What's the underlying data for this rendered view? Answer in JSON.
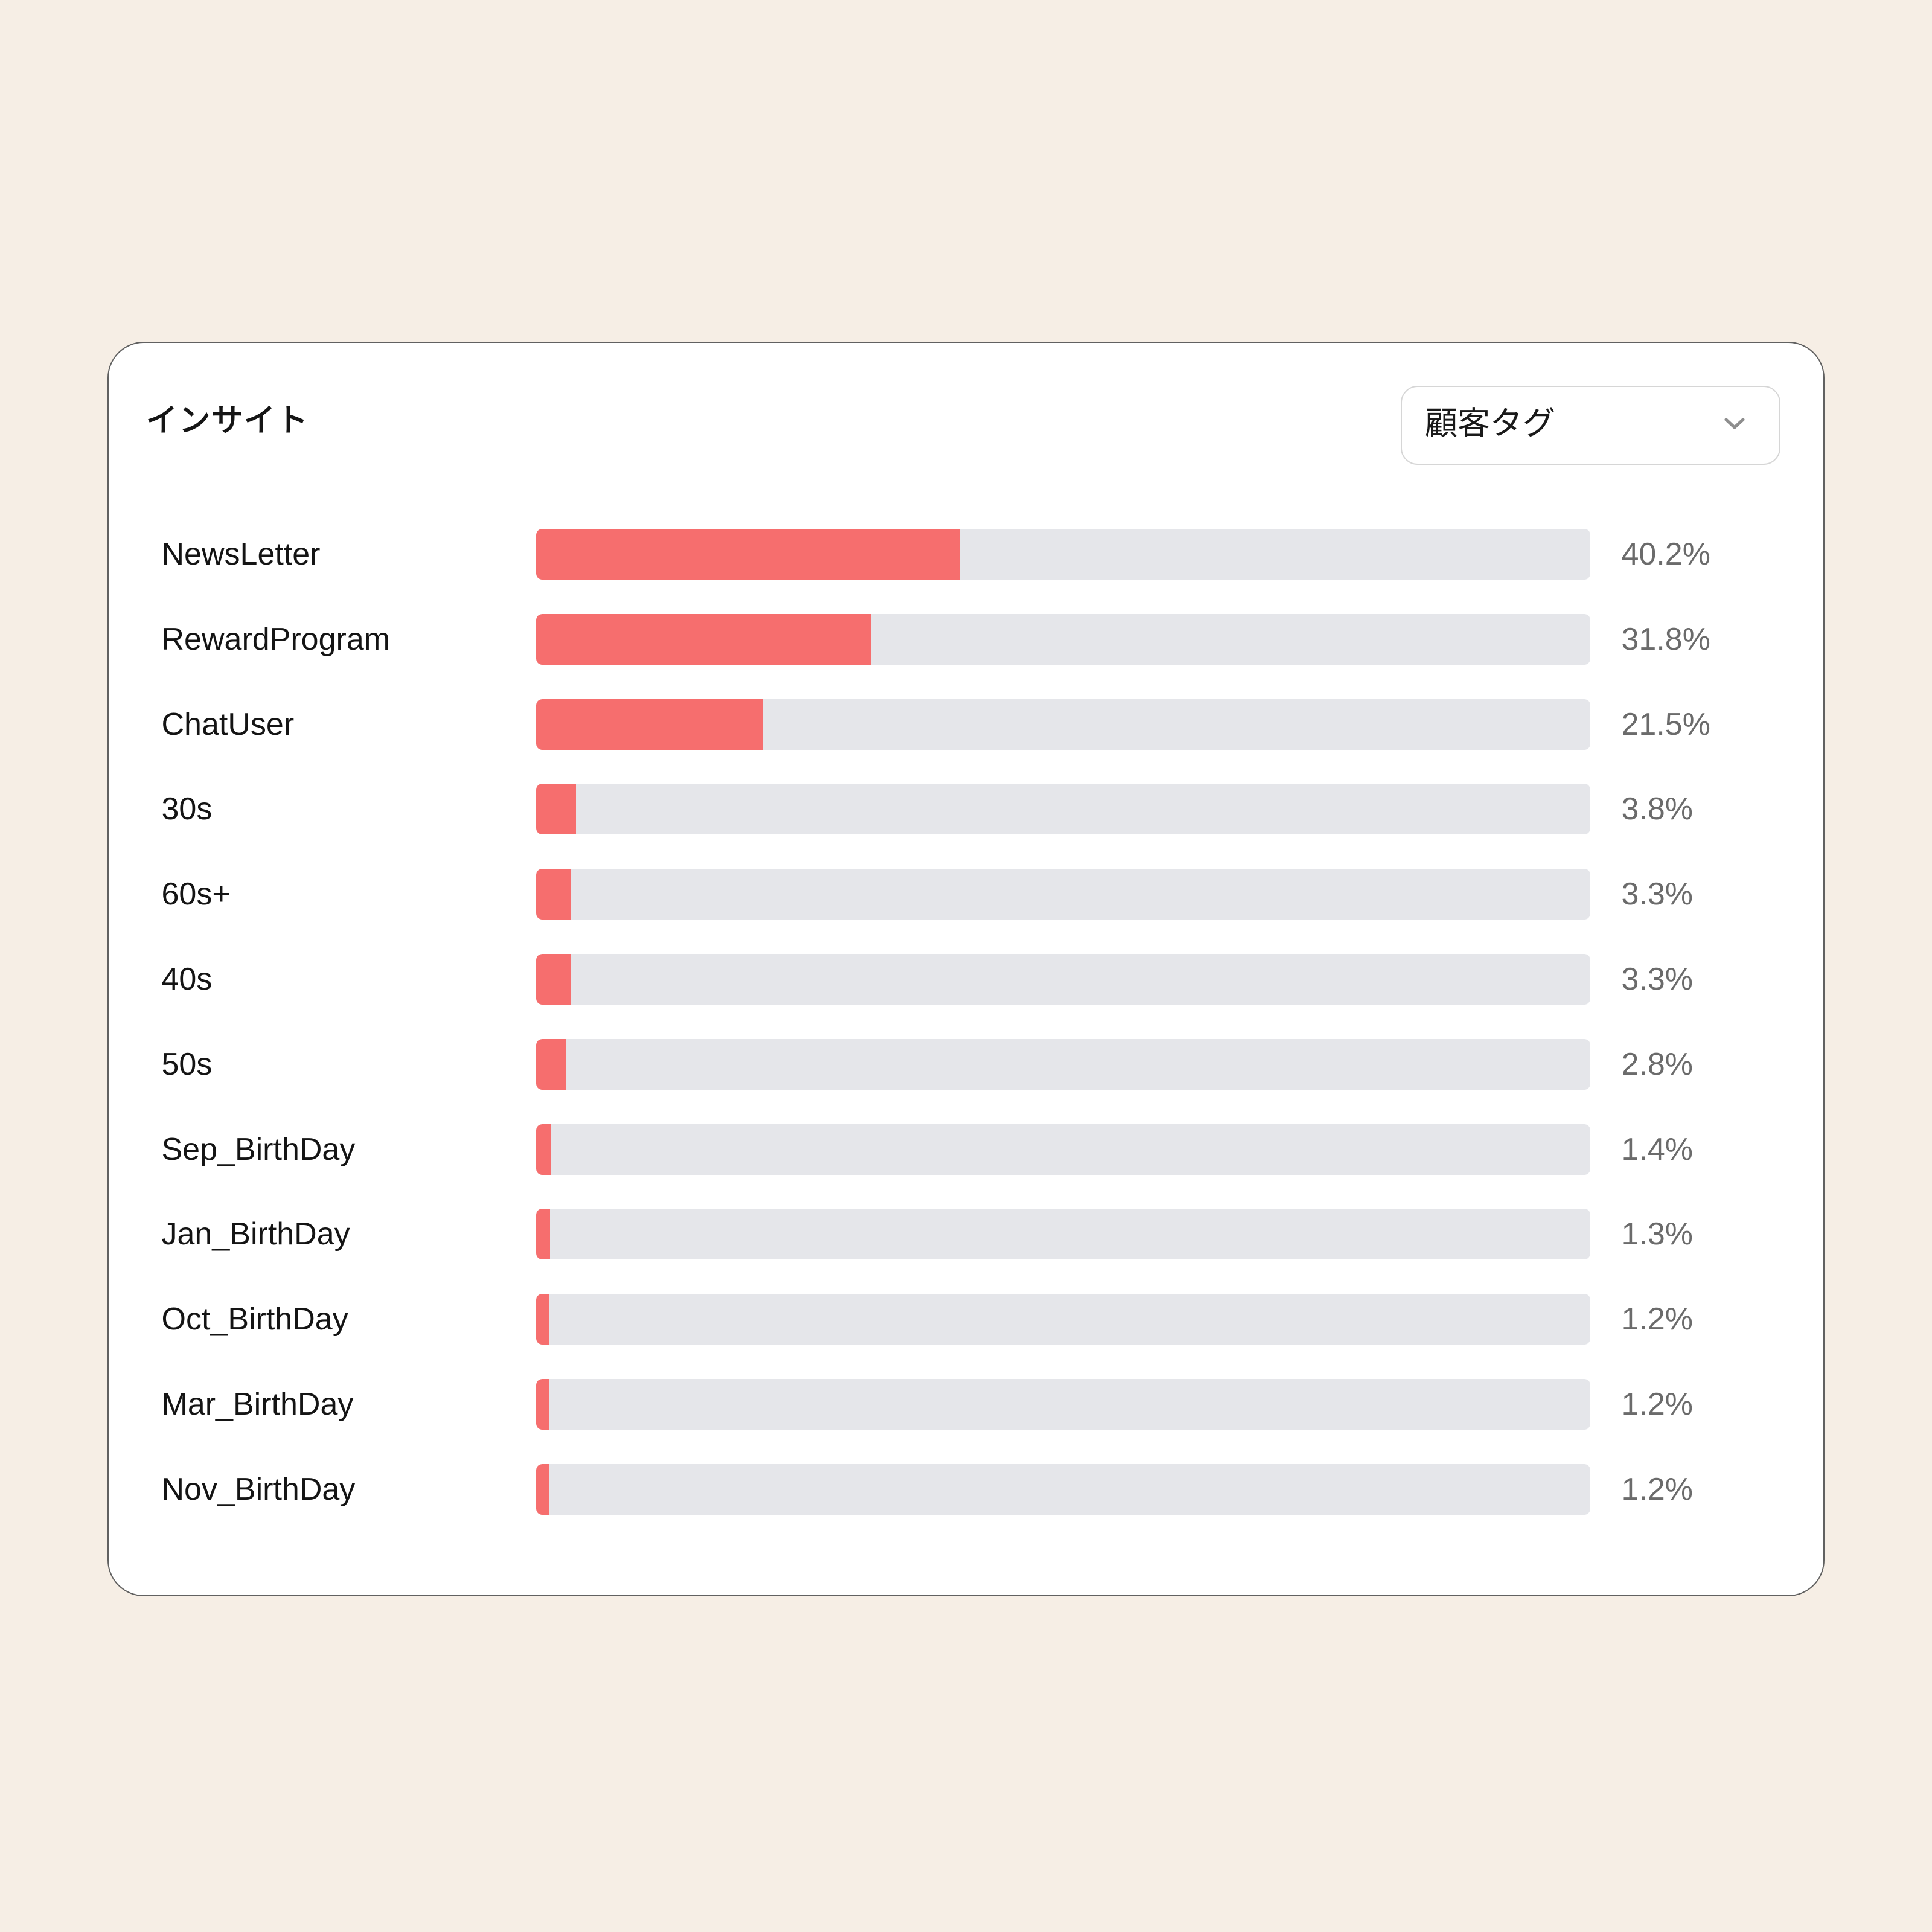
{
  "page": {
    "background_color": "#f6eee5"
  },
  "card": {
    "title": "インサイト",
    "background_color": "#ffffff",
    "dropdown": {
      "value": "顧客タグ",
      "chevron_icon": "chevron-down"
    }
  },
  "chart_data": {
    "type": "bar",
    "orientation": "horizontal",
    "title": "インサイト",
    "xlabel": "",
    "ylabel": "",
    "xlim": [
      0,
      100
    ],
    "unit": "%",
    "grid": false,
    "legend": null,
    "bar_color": "#f66e6e",
    "track_color": "#e5e6ea",
    "categories": [
      "NewsLetter",
      "RewardProgram",
      "ChatUser",
      "30s",
      "60s+",
      "40s",
      "50s",
      "Sep_BirthDay",
      "Jan_BirthDay",
      "Oct_BirthDay",
      "Mar_BirthDay",
      "Nov_BirthDay"
    ],
    "values": [
      40.2,
      31.8,
      21.5,
      3.8,
      3.3,
      3.3,
      2.8,
      1.4,
      1.3,
      1.2,
      1.2,
      1.2
    ],
    "value_labels": [
      "40.2%",
      "31.8%",
      "21.5%",
      "3.8%",
      "3.3%",
      "3.3%",
      "2.8%",
      "1.4%",
      "1.3%",
      "1.2%",
      "1.2%",
      "1.2%"
    ]
  }
}
